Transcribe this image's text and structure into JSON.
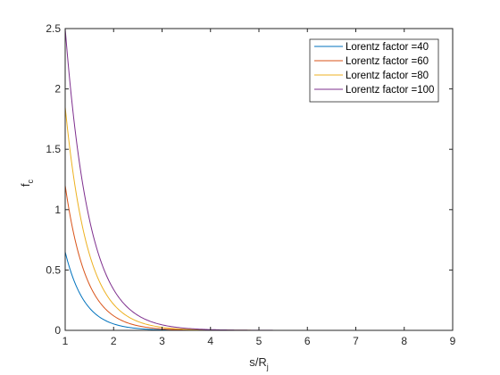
{
  "chart_data": {
    "type": "line",
    "title": "",
    "xlabel": "s/R",
    "xlabel_sub": "j",
    "ylabel": "f",
    "ylabel_sub": "c",
    "xlim": [
      1,
      9
    ],
    "ylim": [
      0,
      2.5
    ],
    "xticks": [
      "1",
      "2",
      "3",
      "4",
      "5",
      "6",
      "7",
      "8",
      "9"
    ],
    "yticks": [
      "0",
      "0.5",
      "1",
      "1.5",
      "2",
      "2.5"
    ],
    "grid": false,
    "legend_position": "top-right",
    "series": [
      {
        "name": "Lorentz factor =40",
        "color": "#0072BD",
        "x_range": [
          1,
          8.5
        ],
        "y_start": 0.65,
        "decay_rate": 2.5
      },
      {
        "name": "Lorentz factor =60",
        "color": "#D95319",
        "x_range": [
          1,
          8.5
        ],
        "y_start": 1.2,
        "decay_rate": 2.3
      },
      {
        "name": "Lorentz factor =80",
        "color": "#EDB120",
        "x_range": [
          1,
          8.5
        ],
        "y_start": 1.85,
        "decay_rate": 2.15
      },
      {
        "name": "Lorentz factor =100",
        "color": "#7E2F8E",
        "x_range": [
          1,
          8.5
        ],
        "y_start": 2.5,
        "decay_rate": 2.0
      }
    ]
  }
}
